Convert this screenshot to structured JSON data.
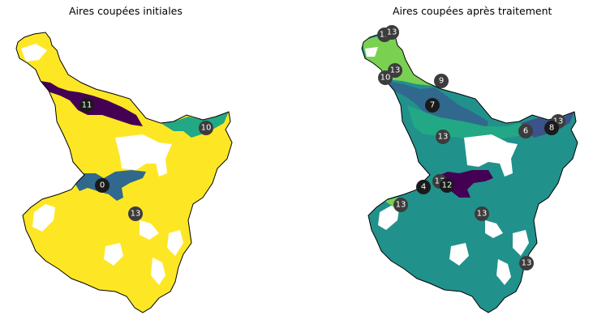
{
  "maps": {
    "left": {
      "title": "Aires coupées initiales"
    },
    "right": {
      "title": "Aires coupées après traitement"
    }
  },
  "colors": {
    "purple_dark": "#440154",
    "indigo": "#3b528b",
    "blue": "#31688e",
    "teal": "#21918c",
    "green": "#22a884",
    "lime": "#7ad151",
    "yellow": "#fde725",
    "marker_dark": "#1a1a1a",
    "marker_grey": "#3c3c3c"
  },
  "markers": {
    "left": [
      {
        "label": "11",
        "shade": "dark"
      },
      {
        "label": "10",
        "shade": "grey"
      },
      {
        "label": "0",
        "shade": "dark"
      },
      {
        "label": "13",
        "shade": "grey"
      }
    ],
    "right": [
      {
        "label": "13",
        "shade": "grey"
      },
      {
        "label": "13",
        "shade": "grey"
      },
      {
        "label": "13",
        "shade": "grey"
      },
      {
        "label": "10",
        "shade": "grey"
      },
      {
        "label": "9",
        "shade": "grey"
      },
      {
        "label": "7",
        "shade": "dark"
      },
      {
        "label": "13",
        "shade": "grey"
      },
      {
        "label": "6",
        "shade": "grey"
      },
      {
        "label": "13",
        "shade": "grey"
      },
      {
        "label": "8",
        "shade": "dark"
      },
      {
        "label": "13",
        "shade": "grey"
      },
      {
        "label": "4",
        "shade": "dark"
      },
      {
        "label": "12",
        "shade": "dark"
      },
      {
        "label": "13",
        "shade": "grey"
      },
      {
        "label": "13",
        "shade": "grey"
      },
      {
        "label": "13",
        "shade": "grey"
      }
    ]
  }
}
